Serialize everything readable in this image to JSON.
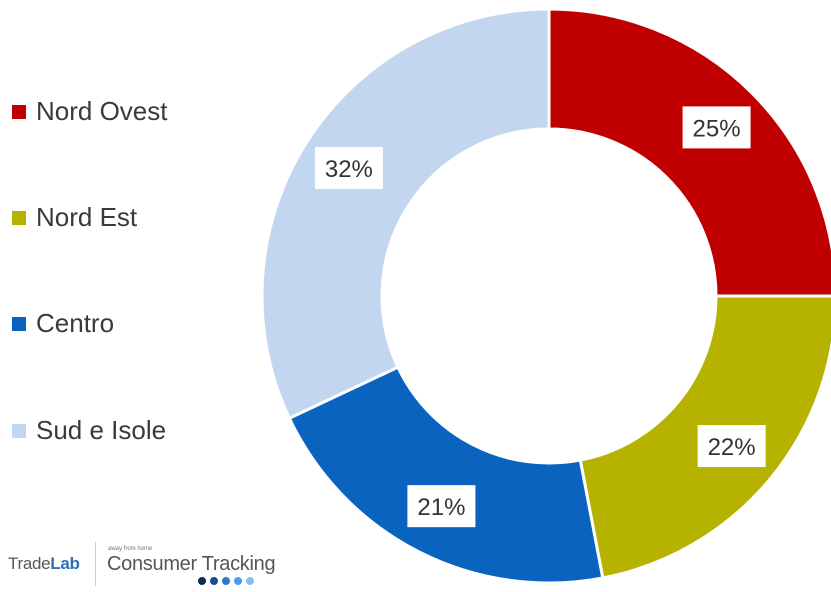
{
  "chart_data": {
    "type": "pie",
    "donut": true,
    "categories": [
      "Nord Ovest",
      "Nord Est",
      "Centro",
      "Sud e Isole"
    ],
    "values": [
      25,
      22,
      21,
      32
    ],
    "labels": [
      "25%",
      "22%",
      "21%",
      "32%"
    ],
    "colors": [
      "#c00000",
      "#b5b300",
      "#0a63bf",
      "#c3d6ef"
    ],
    "legend_position": "left"
  },
  "logo": {
    "brand_prefix": "Trade",
    "brand_suffix": "Lab",
    "tagline": "away from home",
    "product": "Consumer Tracking",
    "dot_colors": [
      "#0d2a55",
      "#1a4c94",
      "#2f78c9",
      "#4d9be6",
      "#7fc0f5"
    ]
  }
}
